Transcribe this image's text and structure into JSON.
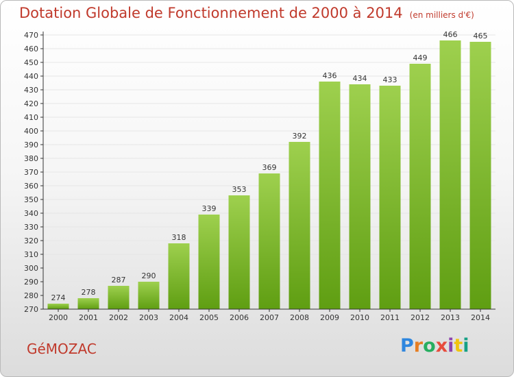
{
  "header": {
    "title": "Dotation Globale de Fonctionnement de 2000 à 2014",
    "unit": "(en milliers d'€)"
  },
  "footer": {
    "place": "GéMOZAC",
    "logo": "Proxiti",
    "logo_colors": [
      "#2e86de",
      "#e67e22",
      "#27ae60",
      "#e74c3c",
      "#8e44ad",
      "#f1c40f",
      "#16a085"
    ]
  },
  "colors": {
    "bar_top": "#9ed04e",
    "bar_bottom": "#5f9e12",
    "axis": "#333333",
    "grid": "#e6e6e6"
  },
  "chart_data": {
    "type": "bar",
    "title": "Dotation Globale de Fonctionnement de 2000 à 2014",
    "subtitle": "(en milliers d'€)",
    "xlabel": "",
    "ylabel": "",
    "categories": [
      "2000",
      "2001",
      "2002",
      "2003",
      "2004",
      "2005",
      "2006",
      "2007",
      "2008",
      "2009",
      "2010",
      "2011",
      "2012",
      "2013",
      "2014"
    ],
    "values": [
      274,
      278,
      287,
      290,
      318,
      339,
      353,
      369,
      392,
      436,
      434,
      433,
      449,
      466,
      465
    ],
    "ylim": [
      270,
      470
    ],
    "yticks": [
      270,
      280,
      290,
      300,
      310,
      320,
      330,
      340,
      350,
      360,
      370,
      380,
      390,
      400,
      410,
      420,
      430,
      440,
      450,
      460,
      470
    ],
    "grid": true,
    "data_labels": true
  }
}
